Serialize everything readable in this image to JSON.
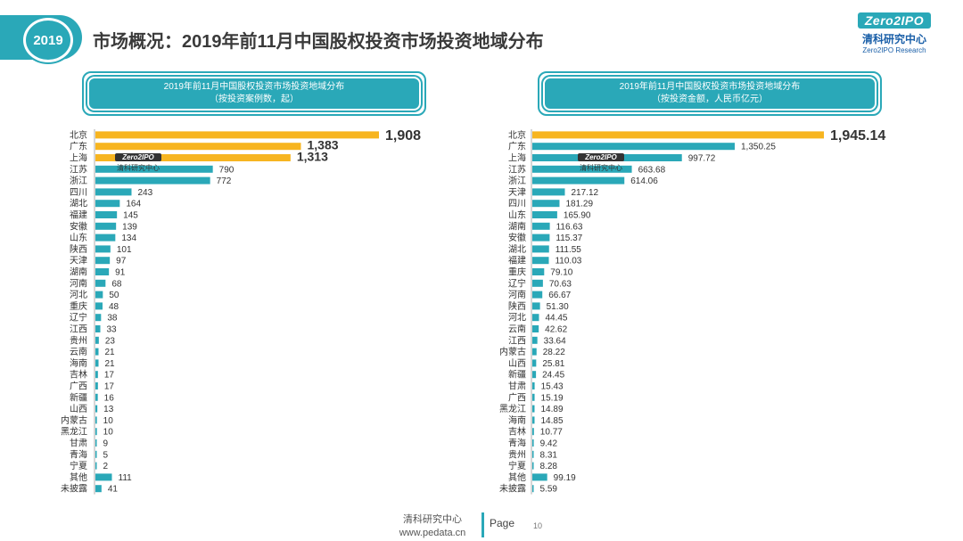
{
  "header": {
    "year": "2019",
    "title": "市场概况：2019年前11月中国股权投资市场投资地域分布"
  },
  "logo": {
    "brand": "Zero2IPO",
    "cn": "清科研究中心",
    "en": "Zero2IPO Research"
  },
  "watermark": {
    "brand": "Zero2IPO",
    "cn": "清科研究中心"
  },
  "footer": {
    "org": "清科研究中心",
    "site": "www.pedata.cn",
    "page_label": "Page",
    "page_number": "10"
  },
  "colors": {
    "accent": "#2aa8b8",
    "highlight": "#f7b520",
    "bar": "#2aa8b8"
  },
  "chart_data": [
    {
      "type": "bar",
      "orientation": "horizontal",
      "title": "2019年前11月中国股权投资市场投资地域分布",
      "subtitle": "（按投资案例数，起）",
      "categories": [
        "北京",
        "广东",
        "上海",
        "江苏",
        "浙江",
        "四川",
        "湖北",
        "福建",
        "安徽",
        "山东",
        "陕西",
        "天津",
        "湖南",
        "河南",
        "河北",
        "重庆",
        "辽宁",
        "江西",
        "贵州",
        "云南",
        "海南",
        "吉林",
        "广西",
        "新疆",
        "山西",
        "内蒙古",
        "黑龙江",
        "甘肃",
        "青海",
        "宁夏",
        "其他",
        "未披露"
      ],
      "values": [
        1908,
        1383,
        1313,
        790,
        772,
        243,
        164,
        145,
        139,
        134,
        101,
        97,
        91,
        68,
        50,
        48,
        38,
        33,
        23,
        21,
        21,
        17,
        17,
        16,
        13,
        10,
        10,
        9,
        5,
        2,
        111,
        41
      ],
      "labels": [
        "1,908",
        "1,383",
        "1,313",
        "790",
        "772",
        "243",
        "164",
        "145",
        "139",
        "134",
        "101",
        "97",
        "91",
        "68",
        "50",
        "48",
        "38",
        "33",
        "23",
        "21",
        "21",
        "17",
        "17",
        "16",
        "13",
        "10",
        "10",
        "9",
        "5",
        "2",
        "111",
        "41"
      ],
      "highlight_top": 3
    },
    {
      "type": "bar",
      "orientation": "horizontal",
      "title": "2019年前11月中国股权投资市场投资地域分布",
      "subtitle": "（按投资金额，人民币亿元）",
      "categories": [
        "北京",
        "广东",
        "上海",
        "江苏",
        "浙江",
        "天津",
        "四川",
        "山东",
        "湖南",
        "安徽",
        "湖北",
        "福建",
        "重庆",
        "辽宁",
        "河南",
        "陕西",
        "河北",
        "云南",
        "江西",
        "内蒙古",
        "山西",
        "新疆",
        "甘肃",
        "广西",
        "黑龙江",
        "海南",
        "吉林",
        "青海",
        "贵州",
        "宁夏",
        "其他",
        "未披露"
      ],
      "values": [
        1945.14,
        1350.25,
        997.72,
        663.68,
        614.06,
        217.12,
        181.29,
        165.9,
        116.63,
        115.37,
        111.55,
        110.03,
        79.1,
        70.63,
        66.67,
        51.3,
        44.45,
        42.62,
        33.64,
        28.22,
        25.81,
        24.45,
        15.43,
        15.19,
        14.89,
        14.85,
        10.77,
        9.42,
        8.31,
        8.28,
        99.19,
        5.59
      ],
      "labels": [
        "1,945.14",
        "1,350.25",
        "997.72",
        "663.68",
        "614.06",
        "217.12",
        "181.29",
        "165.90",
        "116.63",
        "115.37",
        "111.55",
        "110.03",
        "79.10",
        "70.63",
        "66.67",
        "51.30",
        "44.45",
        "42.62",
        "33.64",
        "28.22",
        "25.81",
        "24.45",
        "15.43",
        "15.19",
        "14.89",
        "14.85",
        "10.77",
        "9.42",
        "8.31",
        "8.28",
        "99.19",
        "5.59"
      ],
      "highlight_top": 1
    }
  ]
}
